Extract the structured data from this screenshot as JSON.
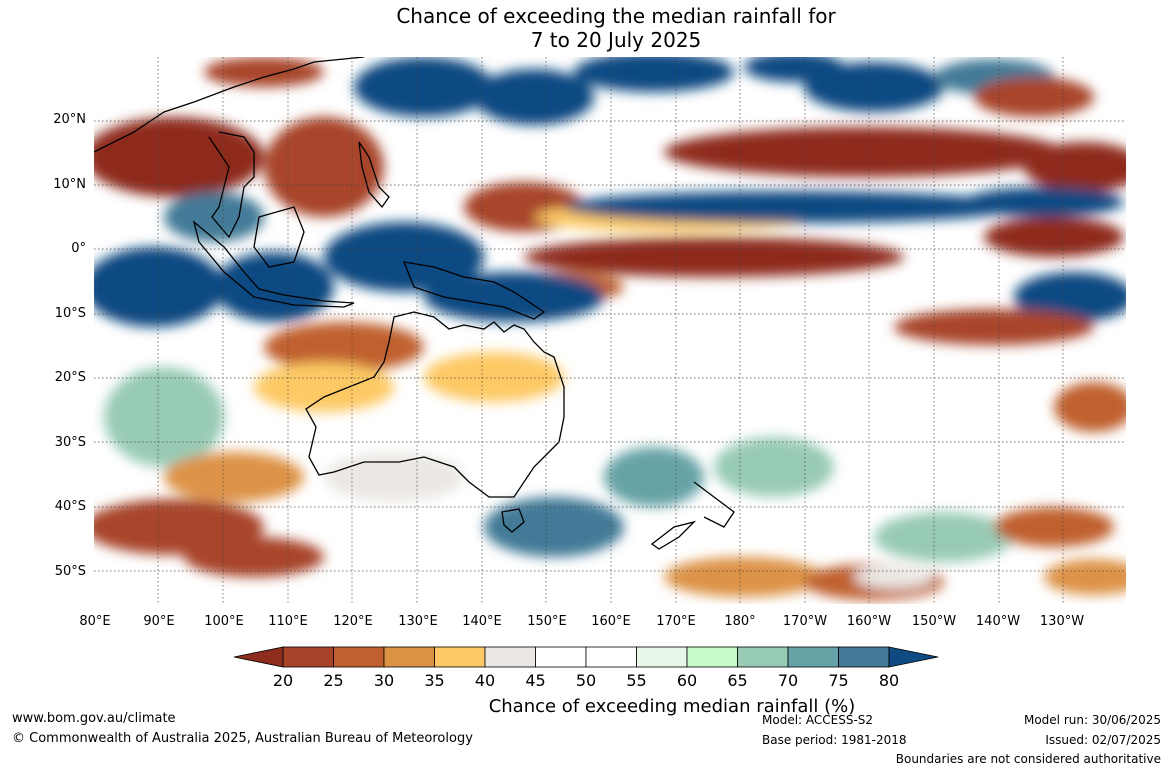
{
  "title": {
    "line1": "Chance of exceeding the median rainfall for",
    "line2": "7 to 20 July 2025"
  },
  "map": {
    "lat_labels": [
      "20°N",
      "10°N",
      "0°",
      "10°S",
      "20°S",
      "30°S",
      "40°S",
      "50°S"
    ],
    "lon_labels": [
      "80°E",
      "90°E",
      "100°E",
      "110°E",
      "120°E",
      "130°E",
      "140°E",
      "150°E",
      "160°E",
      "170°E",
      "180°",
      "170°W",
      "160°W",
      "150°W",
      "140°W",
      "130°W"
    ],
    "lon_range": [
      "80°E",
      "120°W"
    ],
    "lat_range": [
      "55°S",
      "30°N"
    ],
    "gridlines": true
  },
  "legend": {
    "ticks": [
      "20",
      "25",
      "30",
      "35",
      "40",
      "45",
      "50",
      "55",
      "60",
      "65",
      "70",
      "75",
      "80"
    ],
    "colors": [
      "#8e2c1d",
      "#a8442a",
      "#c0602f",
      "#dd9346",
      "#fdc965",
      "#ebe8e4",
      "#ffffff",
      "#ffffff",
      "#e8f8e8",
      "#c4fbc8",
      "#98cbb6",
      "#66a3a6",
      "#427a97",
      "#0f4a82"
    ],
    "title": "Chance of exceeding median rainfall (%)"
  },
  "footer": {
    "website": "www.bom.gov.au/climate",
    "copyright": "© Commonwealth of Australia 2025, Australian Bureau of Meteorology",
    "model": "Model: ACCESS-S2",
    "base_period": "Base period: 1981-2018",
    "model_run": "Model run: 30/06/2025",
    "issued": "Issued: 02/07/2025",
    "disclaimer": "Boundaries are not considered authoritative"
  }
}
